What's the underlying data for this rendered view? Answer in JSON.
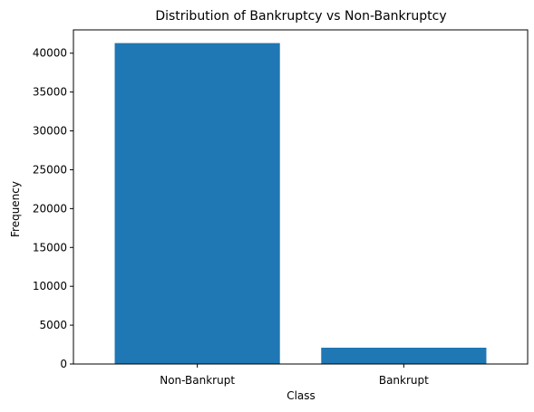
{
  "chart_data": {
    "type": "bar",
    "title": "Distribution of Bankruptcy vs Non-Bankruptcy",
    "xlabel": "Class",
    "ylabel": "Frequency",
    "categories": [
      "Non-Bankrupt",
      "Bankrupt"
    ],
    "values": [
      41300,
      2100
    ],
    "ylim": [
      0,
      43000
    ],
    "yticks": [
      0,
      5000,
      10000,
      15000,
      20000,
      25000,
      30000,
      35000,
      40000
    ],
    "bar_color": "#1f77b4",
    "grid": false,
    "legend": "none"
  }
}
